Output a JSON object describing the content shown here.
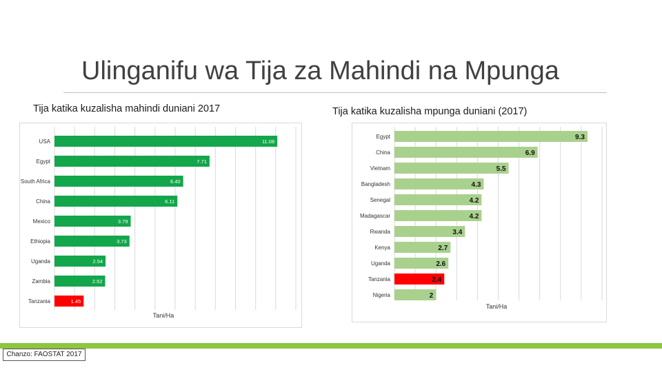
{
  "title": "Ulinganifu wa Tija za Mahindi na Mpunga",
  "source": "Chanzo: FAOSTAT 2017",
  "colors": {
    "green": "#13a64b",
    "red": "#ff0000",
    "lightgreen": "#a9d18e",
    "accent": "#8dc63f"
  },
  "chart_data": [
    {
      "type": "bar",
      "orientation": "horizontal",
      "title": "Tija katika kuzalisha mahindi duniani 2017",
      "xlabel": "Tani/Ha",
      "ylabel": "",
      "xlim": [
        0,
        12
      ],
      "categories": [
        "USA",
        "Egypt",
        "South Africa",
        "China",
        "Mexico",
        "Ethiopia",
        "Uganda",
        "Zambia",
        "Tanzania"
      ],
      "values": [
        11.08,
        7.71,
        6.4,
        6.11,
        3.79,
        3.73,
        2.54,
        2.52,
        1.45
      ],
      "labels": [
        "11.08",
        "7.71",
        "6.40",
        "6.11",
        "3.79",
        "3.73",
        "2.54",
        "2.52",
        "1.45"
      ],
      "highlight": "Tanzania"
    },
    {
      "type": "bar",
      "orientation": "horizontal",
      "title": "Tija katika kuzalisha mpunga duniani (2017)",
      "xlabel": "Tani/Ha",
      "ylabel": "",
      "xlim": [
        0,
        10
      ],
      "categories": [
        "Egypt",
        "China",
        "Vietnam",
        "Bangladesh",
        "Senegal",
        "Madagascar",
        "Rwanda",
        "Kenya",
        "Uganda",
        "Tanzania",
        "Nigeria"
      ],
      "values": [
        9.3,
        6.9,
        5.5,
        4.3,
        4.2,
        4.2,
        3.4,
        2.7,
        2.6,
        2.4,
        2
      ],
      "labels": [
        "9.3",
        "6.9",
        "5.5",
        "4.3",
        "4.2",
        "4.2",
        "3.4",
        "2.7",
        "2.6",
        "2.4",
        "2"
      ],
      "highlight": "Tanzania"
    }
  ]
}
